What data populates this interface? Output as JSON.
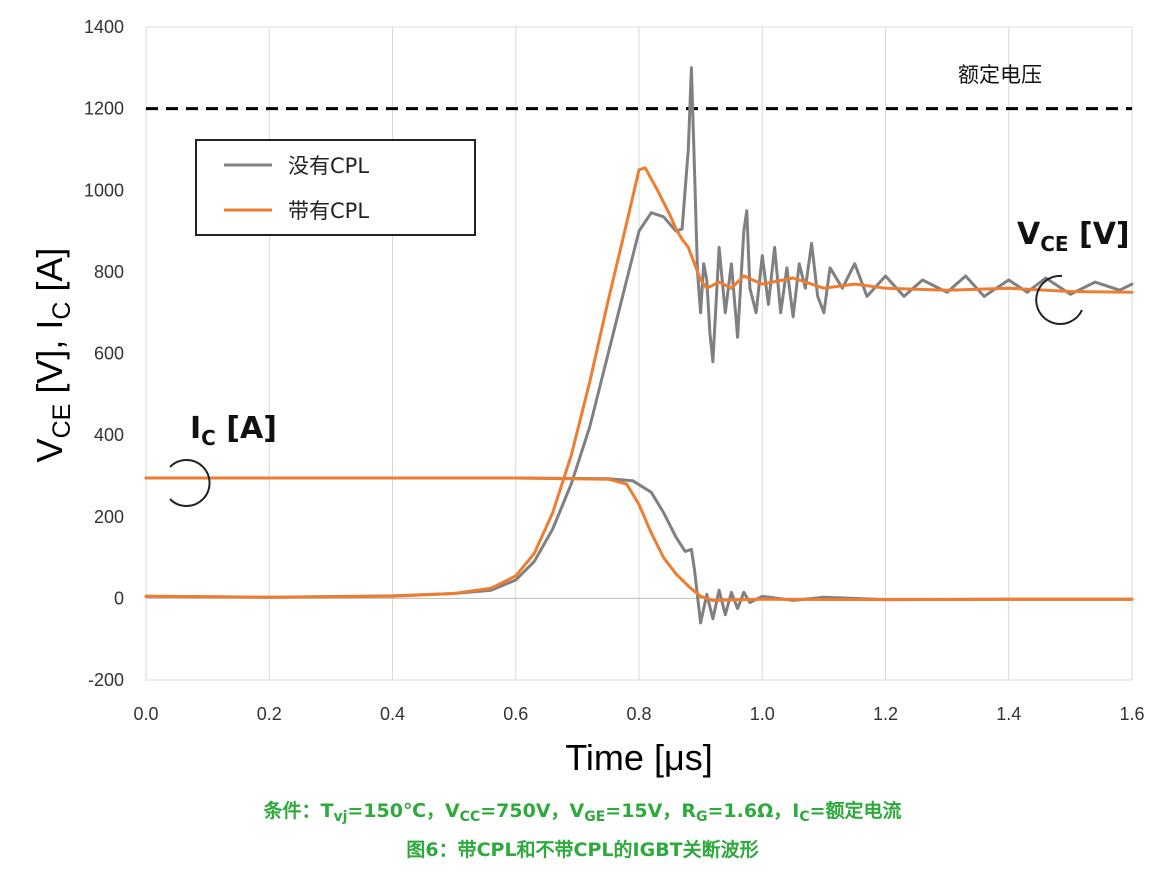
{
  "chart_data": {
    "type": "line",
    "xlabel": "Time [μs]",
    "ylabel": "V_CE [V], I_C [A]",
    "ylabel_parts": [
      "V",
      "CE",
      " [V], I",
      "C",
      " [A]"
    ],
    "xlim": [
      0.0,
      1.6
    ],
    "ylim": [
      -200,
      1400
    ],
    "x_ticks": [
      "0.0",
      "0.2",
      "0.4",
      "0.6",
      "0.8",
      "1.0",
      "1.2",
      "1.4",
      "1.6"
    ],
    "y_ticks": [
      "1400",
      "1200",
      "1000",
      "800",
      "600",
      "400",
      "200",
      "0",
      "-200"
    ],
    "grid": "vertical",
    "legend_position": "top-left",
    "reference_line": {
      "y": 1200,
      "style": "dashed",
      "label": "额定电压"
    },
    "annotations": {
      "vce": {
        "main": "V",
        "sub": "CE",
        "rest": " [V]"
      },
      "ic": {
        "main": "I",
        "sub": "C",
        "rest": " [A]"
      }
    },
    "series": [
      {
        "name": "没有CPL",
        "color": "#808080",
        "vce": [
          [
            0,
            5
          ],
          [
            0.2,
            3
          ],
          [
            0.4,
            6
          ],
          [
            0.5,
            12
          ],
          [
            0.56,
            20
          ],
          [
            0.6,
            45
          ],
          [
            0.63,
            90
          ],
          [
            0.66,
            170
          ],
          [
            0.69,
            280
          ],
          [
            0.72,
            420
          ],
          [
            0.75,
            600
          ],
          [
            0.78,
            780
          ],
          [
            0.8,
            900
          ],
          [
            0.82,
            945
          ],
          [
            0.84,
            935
          ],
          [
            0.86,
            900
          ],
          [
            0.87,
            905
          ],
          [
            0.88,
            1100
          ],
          [
            0.885,
            1300
          ],
          [
            0.89,
            1050
          ],
          [
            0.895,
            800
          ],
          [
            0.9,
            700
          ],
          [
            0.905,
            820
          ],
          [
            0.91,
            780
          ],
          [
            0.915,
            650
          ],
          [
            0.92,
            580
          ],
          [
            0.93,
            860
          ],
          [
            0.94,
            700
          ],
          [
            0.95,
            820
          ],
          [
            0.96,
            640
          ],
          [
            0.97,
            900
          ],
          [
            0.975,
            950
          ],
          [
            0.98,
            760
          ],
          [
            0.99,
            700
          ],
          [
            1.0,
            840
          ],
          [
            1.01,
            720
          ],
          [
            1.02,
            860
          ],
          [
            1.03,
            700
          ],
          [
            1.04,
            810
          ],
          [
            1.05,
            690
          ],
          [
            1.06,
            820
          ],
          [
            1.07,
            760
          ],
          [
            1.08,
            870
          ],
          [
            1.09,
            740
          ],
          [
            1.1,
            700
          ],
          [
            1.11,
            810
          ],
          [
            1.13,
            760
          ],
          [
            1.15,
            820
          ],
          [
            1.17,
            740
          ],
          [
            1.2,
            790
          ],
          [
            1.23,
            740
          ],
          [
            1.26,
            780
          ],
          [
            1.3,
            750
          ],
          [
            1.33,
            790
          ],
          [
            1.36,
            740
          ],
          [
            1.4,
            780
          ],
          [
            1.43,
            750
          ],
          [
            1.46,
            785
          ],
          [
            1.5,
            745
          ],
          [
            1.54,
            775
          ],
          [
            1.58,
            755
          ],
          [
            1.6,
            770
          ]
        ],
        "ic": [
          [
            0,
            295
          ],
          [
            0.2,
            295
          ],
          [
            0.4,
            295
          ],
          [
            0.6,
            295
          ],
          [
            0.75,
            293
          ],
          [
            0.79,
            288
          ],
          [
            0.82,
            260
          ],
          [
            0.84,
            210
          ],
          [
            0.86,
            150
          ],
          [
            0.875,
            115
          ],
          [
            0.885,
            120
          ],
          [
            0.89,
            70
          ],
          [
            0.9,
            -60
          ],
          [
            0.91,
            10
          ],
          [
            0.92,
            -50
          ],
          [
            0.93,
            20
          ],
          [
            0.94,
            -40
          ],
          [
            0.95,
            15
          ],
          [
            0.96,
            -25
          ],
          [
            0.97,
            15
          ],
          [
            0.98,
            -10
          ],
          [
            1.0,
            5
          ],
          [
            1.05,
            -5
          ],
          [
            1.1,
            3
          ],
          [
            1.2,
            -3
          ],
          [
            1.4,
            -2
          ],
          [
            1.6,
            -2
          ]
        ]
      },
      {
        "name": "带有CPL",
        "color": "#ee7d31",
        "vce": [
          [
            0,
            5
          ],
          [
            0.2,
            3
          ],
          [
            0.4,
            5
          ],
          [
            0.5,
            12
          ],
          [
            0.56,
            25
          ],
          [
            0.6,
            55
          ],
          [
            0.63,
            110
          ],
          [
            0.66,
            210
          ],
          [
            0.69,
            350
          ],
          [
            0.72,
            530
          ],
          [
            0.75,
            730
          ],
          [
            0.78,
            920
          ],
          [
            0.8,
            1050
          ],
          [
            0.81,
            1055
          ],
          [
            0.83,
            1000
          ],
          [
            0.85,
            940
          ],
          [
            0.86,
            905
          ],
          [
            0.87,
            880
          ],
          [
            0.88,
            860
          ],
          [
            0.89,
            820
          ],
          [
            0.9,
            780
          ],
          [
            0.91,
            760
          ],
          [
            0.93,
            775
          ],
          [
            0.95,
            760
          ],
          [
            0.97,
            790
          ],
          [
            1.0,
            770
          ],
          [
            1.05,
            785
          ],
          [
            1.1,
            760
          ],
          [
            1.15,
            770
          ],
          [
            1.2,
            760
          ],
          [
            1.3,
            755
          ],
          [
            1.4,
            760
          ],
          [
            1.5,
            752
          ],
          [
            1.6,
            750
          ]
        ],
        "ic": [
          [
            0,
            295
          ],
          [
            0.2,
            295
          ],
          [
            0.4,
            295
          ],
          [
            0.6,
            295
          ],
          [
            0.75,
            292
          ],
          [
            0.78,
            280
          ],
          [
            0.8,
            230
          ],
          [
            0.82,
            160
          ],
          [
            0.84,
            100
          ],
          [
            0.86,
            60
          ],
          [
            0.88,
            30
          ],
          [
            0.9,
            5
          ],
          [
            0.92,
            -5
          ],
          [
            1.0,
            -2
          ],
          [
            1.2,
            -3
          ],
          [
            1.4,
            -2
          ],
          [
            1.6,
            -2
          ]
        ]
      }
    ]
  },
  "caption": {
    "line1": [
      "条件：T",
      "vj",
      "=150℃，V",
      "CC",
      "=750V，V",
      "GE",
      "=15V，R",
      "G",
      "=1.6Ω，I",
      "C",
      "=额定电流"
    ],
    "line2": "图6：带CPL和不带CPL的IGBT关断波形"
  }
}
